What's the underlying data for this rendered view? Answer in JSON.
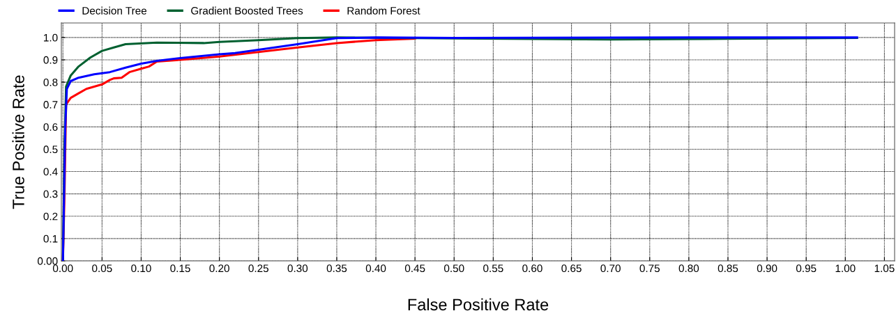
{
  "chart_data": {
    "type": "line",
    "xlabel": "False Positive Rate",
    "ylabel": "True Positive Rate",
    "series": [
      {
        "name": "Decision Tree",
        "color": "#0000ff",
        "x": [
          0,
          0.003,
          0.005,
          0.01,
          0.02,
          0.04,
          0.06,
          0.08,
          0.1,
          0.12,
          0.15,
          0.2,
          0.22,
          0.25,
          0.3,
          0.35,
          0.4,
          0.5,
          0.6,
          0.8,
          1.015
        ],
        "values": [
          0,
          0.6,
          0.77,
          0.805,
          0.82,
          0.835,
          0.845,
          0.865,
          0.883,
          0.895,
          0.908,
          0.925,
          0.93,
          0.945,
          0.97,
          0.997,
          1.0,
          0.998,
          0.999,
          1.0,
          1.0
        ]
      },
      {
        "name": "Gradient Boosted Trees",
        "color": "#006030",
        "x": [
          0,
          0.002,
          0.004,
          0.01,
          0.02,
          0.035,
          0.05,
          0.065,
          0.08,
          0.12,
          0.18,
          0.2,
          0.25,
          0.3,
          0.35,
          0.5,
          0.7,
          0.85,
          1.015
        ],
        "values": [
          0,
          0.5,
          0.78,
          0.83,
          0.87,
          0.91,
          0.94,
          0.955,
          0.97,
          0.977,
          0.975,
          0.98,
          0.988,
          0.997,
          1.0,
          0.996,
          0.991,
          0.994,
          0.998
        ]
      },
      {
        "name": "Random Forest",
        "color": "#ff0000",
        "x": [
          0,
          0.002,
          0.004,
          0.01,
          0.02,
          0.03,
          0.05,
          0.06,
          0.065,
          0.075,
          0.085,
          0.1,
          0.11,
          0.12,
          0.15,
          0.2,
          0.3,
          0.35,
          0.4,
          0.45
        ],
        "values": [
          0,
          0.3,
          0.7,
          0.73,
          0.75,
          0.77,
          0.79,
          0.81,
          0.817,
          0.82,
          0.845,
          0.86,
          0.87,
          0.892,
          0.9,
          0.915,
          0.955,
          0.975,
          0.988,
          0.995
        ]
      }
    ],
    "xlim": [
      -0.002,
      1.063
    ],
    "ylim": [
      0,
      1.065
    ],
    "xticks": [
      {
        "value": 0,
        "label": "0.00"
      },
      {
        "value": 0.05,
        "label": "0.05"
      },
      {
        "value": 0.1,
        "label": "0.10"
      },
      {
        "value": 0.15,
        "label": "0.15"
      },
      {
        "value": 0.2,
        "label": "0.20"
      },
      {
        "value": 0.25,
        "label": "0.25"
      },
      {
        "value": 0.3,
        "label": "0.30"
      },
      {
        "value": 0.35,
        "label": "0.35"
      },
      {
        "value": 0.4,
        "label": "0.40"
      },
      {
        "value": 0.45,
        "label": "0.45"
      },
      {
        "value": 0.5,
        "label": "0.50"
      },
      {
        "value": 0.55,
        "label": "0.55"
      },
      {
        "value": 0.6,
        "label": "0.60"
      },
      {
        "value": 0.65,
        "label": "0.65"
      },
      {
        "value": 0.7,
        "label": "0.70"
      },
      {
        "value": 0.75,
        "label": "0.75"
      },
      {
        "value": 0.8,
        "label": "0.80"
      },
      {
        "value": 0.85,
        "label": "0.85"
      },
      {
        "value": 0.9,
        "label": "0.90"
      },
      {
        "value": 0.95,
        "label": "0.95"
      },
      {
        "value": 1.0,
        "label": "1.00"
      },
      {
        "value": 1.05,
        "label": "1.05"
      }
    ],
    "yticks": [
      {
        "value": 0,
        "label": "0.00"
      },
      0.1,
      0.2,
      0.3,
      0.4,
      0.5,
      0.6,
      0.7,
      0.8,
      0.9,
      {
        "value": 1.0,
        "label": "1.0"
      }
    ],
    "grid": true,
    "legend": "top left",
    "marker": "none",
    "line_style": "solid"
  }
}
